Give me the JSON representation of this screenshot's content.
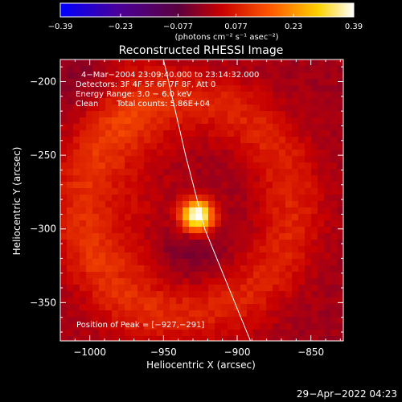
{
  "colorbar": {
    "ticks": [
      "−0.39",
      "−0.23",
      "−0.077",
      "0.077",
      "0.23",
      "0.39"
    ],
    "tick_values": [
      -0.39,
      -0.23,
      -0.077,
      0.077,
      0.23,
      0.39
    ],
    "range": [
      -0.39,
      0.39
    ],
    "unit_label": "(photons cm⁻² s⁻¹ asec⁻²)",
    "colormap": [
      "#0000ff",
      "#4b0097",
      "#5a0040",
      "#c80000",
      "#ff5a00",
      "#ffd200",
      "#ffffff"
    ]
  },
  "chart_data": {
    "type": "heatmap",
    "title": "Reconstructed RHESSI Image",
    "xlabel": "Heliocentric X (arcsec)",
    "ylabel": "Heliocentric Y (arcsec)",
    "xlim": [
      -1020,
      -828
    ],
    "ylim": [
      -376,
      -185
    ],
    "x_ticks": [
      -1000,
      -950,
      -900,
      -850
    ],
    "y_ticks": [
      -200,
      -250,
      -300,
      -350
    ],
    "x_tick_labels": [
      "−1000",
      "−950",
      "−900",
      "−850"
    ],
    "y_tick_labels": [
      "−200",
      "−250",
      "−300",
      "−350"
    ],
    "peak": {
      "x": -927,
      "y": -291,
      "value": 0.39
    },
    "limb_line": [
      [
        -950,
        -185
      ],
      [
        -935,
        -250
      ],
      [
        -922,
        -300
      ],
      [
        -891,
        -376
      ]
    ],
    "annotations": {
      "time_range": "4−Mar−2004 23:09:40.000 to 23:14:32.000",
      "detectors": "Detectors: 3F 4F 5F 6F 7F 8F, Att 0",
      "energy": "Energy Range: 3.0 − 6.0 keV",
      "method": "Clean",
      "counts": "Total counts: 5.86E+04",
      "peak_position": "Position of Peak = [−927,−291]"
    }
  },
  "footer": {
    "date": "29−Apr−2022 04:23"
  }
}
